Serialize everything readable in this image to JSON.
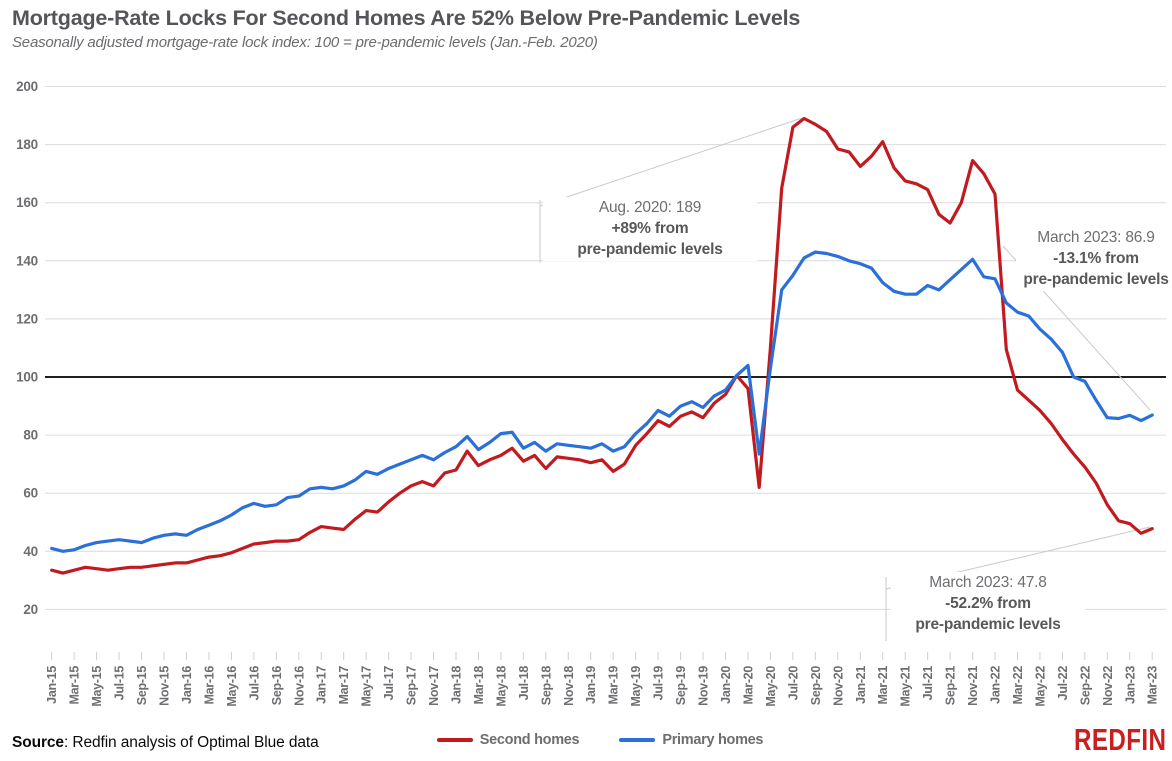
{
  "header": {
    "title": "Mortgage-Rate Locks For Second Homes Are 52% Below Pre-Pandemic Levels",
    "subtitle": "Seasonally adjusted mortgage-rate lock index: 100 = pre-pandemic levels (Jan.-Feb. 2020)"
  },
  "chart_data": {
    "type": "line",
    "x_start": "Jan-15",
    "x_end": "Mar-23",
    "x_frequency": "monthly",
    "x_tick_labels": [
      "Jan-15",
      "Mar-15",
      "May-15",
      "Jul-15",
      "Sep-15",
      "Nov-15",
      "Jan-16",
      "Mar-16",
      "May-16",
      "Jul-16",
      "Sep-16",
      "Nov-16",
      "Jan-17",
      "Mar-17",
      "May-17",
      "Jul-17",
      "Sep-17",
      "Nov-17",
      "Jan-18",
      "Mar-18",
      "May-18",
      "Jul-18",
      "Sep-18",
      "Nov-18",
      "Jan-19",
      "Mar-19",
      "May-19",
      "Jul-19",
      "Sep-19",
      "Nov-19",
      "Jan-20",
      "Mar-20",
      "May-20",
      "Jul-20",
      "Sep-20",
      "Nov-20",
      "Jan-21",
      "Mar-21",
      "May-21",
      "Jul-21",
      "Sep-21",
      "Nov-21",
      "Jan-22",
      "Mar-22",
      "May-22",
      "Jul-22",
      "Sep-22",
      "Nov-22",
      "Jan-23",
      "Mar-23"
    ],
    "ylim": [
      0,
      200
    ],
    "y_ticks": [
      20,
      40,
      60,
      80,
      100,
      120,
      140,
      160,
      180,
      200
    ],
    "reference_value": 100,
    "grid": "horizontal",
    "legend_position": "bottom-center",
    "series": [
      {
        "key": "second-homes",
        "name": "Second homes",
        "color": "#c11a1f",
        "values": [
          33.5,
          32.5,
          33.5,
          34.5,
          34,
          33.5,
          34,
          34.5,
          34.5,
          35,
          35.5,
          36,
          36,
          37,
          38,
          38.5,
          39.5,
          41,
          42.5,
          43,
          43.5,
          43.5,
          44,
          46.5,
          48.5,
          48,
          47.5,
          51,
          54,
          53.5,
          57,
          60,
          62.5,
          64,
          62.5,
          67,
          68,
          74.5,
          69.5,
          71.5,
          73,
          75.5,
          71,
          73,
          68.5,
          72.5,
          72,
          71.5,
          70.5,
          71.5,
          67.5,
          70,
          76.5,
          80.5,
          85,
          83,
          86.5,
          88,
          86,
          91,
          94,
          100.5,
          96,
          62,
          110,
          165,
          186,
          189,
          187,
          184.5,
          178.5,
          177.5,
          172.5,
          176,
          181,
          172,
          167.5,
          166.5,
          164.5,
          156,
          153,
          160,
          174.5,
          170,
          163,
          109.5,
          95.5,
          92,
          88.5,
          84,
          78.5,
          73.5,
          69,
          63.5,
          56,
          50.5,
          49.5,
          46.2,
          47.8
        ]
      },
      {
        "key": "primary-homes",
        "name": "Primary homes",
        "color": "#2a70d8",
        "values": [
          41,
          40,
          40.5,
          42,
          43,
          43.5,
          44,
          43.5,
          43,
          44.5,
          45.5,
          46,
          45.5,
          47.5,
          49,
          50.5,
          52.5,
          55,
          56.5,
          55.5,
          56,
          58.5,
          59,
          61.5,
          62,
          61.5,
          62.5,
          64.5,
          67.5,
          66.5,
          68.5,
          70,
          71.5,
          73,
          71.5,
          74,
          76,
          79.5,
          75,
          77.5,
          80.5,
          81,
          75.5,
          77.5,
          74.5,
          77,
          76.5,
          76,
          75.5,
          77,
          74.5,
          76,
          80.5,
          84,
          88.5,
          86.5,
          90,
          91.5,
          89.5,
          93.5,
          95.5,
          100.5,
          104,
          73.5,
          103,
          130,
          135,
          141,
          143,
          142.5,
          141.5,
          140,
          139,
          137.5,
          132.5,
          129.5,
          128.5,
          128.5,
          131.5,
          130,
          133.5,
          137,
          140.5,
          134.5,
          133.8,
          125.5,
          122.3,
          121,
          116.5,
          113,
          108.5,
          100,
          98.5,
          92,
          86,
          85.7,
          86.8,
          85,
          86.9
        ]
      }
    ],
    "annotations": [
      {
        "id": "aug-2020-peak",
        "line1": "Aug. 2020: 189",
        "line2": "+89% from",
        "line3": "pre-pandemic levels"
      },
      {
        "id": "march-2023-primary",
        "line1": "March 2023: 86.9",
        "line2": "-13.1% from",
        "line3": "pre-pandemic levels"
      },
      {
        "id": "march-2023-second",
        "line1": "March 2023: 47.8",
        "line2": "-52.2% from",
        "line3": "pre-pandemic levels"
      }
    ],
    "colors": {
      "gridline": "#dcdcdc",
      "reference_line": "#000000",
      "leader_line": "#c9c9c9",
      "tick": "#cfcfcf",
      "axis_text": "#6d6e71"
    }
  },
  "legend": {
    "items": [
      {
        "label": "Second homes",
        "color": "#c11a1f"
      },
      {
        "label": "Primary homes",
        "color": "#2a70d8"
      }
    ]
  },
  "footer": {
    "source_label": "Source",
    "source_rest": ": Redfin analysis of Optimal Blue data",
    "logo_text": "REDFIN",
    "logo_color": "#c82021"
  }
}
